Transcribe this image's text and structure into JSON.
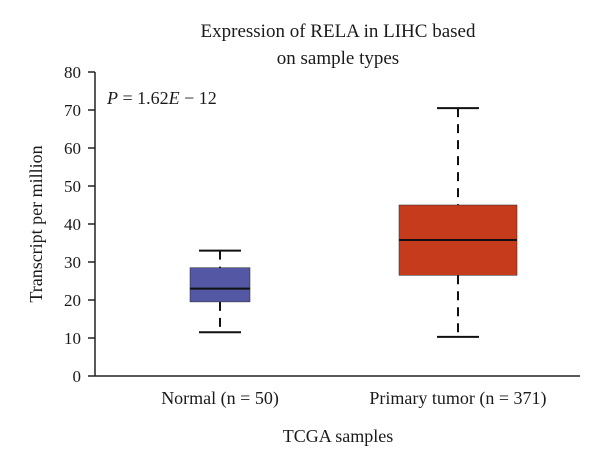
{
  "chart_data": {
    "type": "boxplot",
    "title_line1": "Expression of RELA in LIHC based",
    "title_line2": "on sample types",
    "xlabel": "TCGA samples",
    "ylabel": "Transcript per million",
    "ylim": [
      0,
      80
    ],
    "yticks": [
      "0",
      "10",
      "20",
      "30",
      "40",
      "50",
      "60",
      "70",
      "80"
    ],
    "annotation": {
      "p_label": "P",
      "p_value": " = 1.62",
      "p_exp_label": "E",
      "p_exp_value": " − 12"
    },
    "grid": false,
    "series": [
      {
        "category": "Normal (n = 50)",
        "color": "#5457a4",
        "min": 11.5,
        "q1": 19.5,
        "median": 23,
        "q3": 28.5,
        "max": 33
      },
      {
        "category": "Primary tumor (n = 371)",
        "color": "#c73b1d",
        "min": 10.3,
        "q1": 26.5,
        "median": 35.8,
        "q3": 45,
        "max": 70.5
      }
    ]
  }
}
